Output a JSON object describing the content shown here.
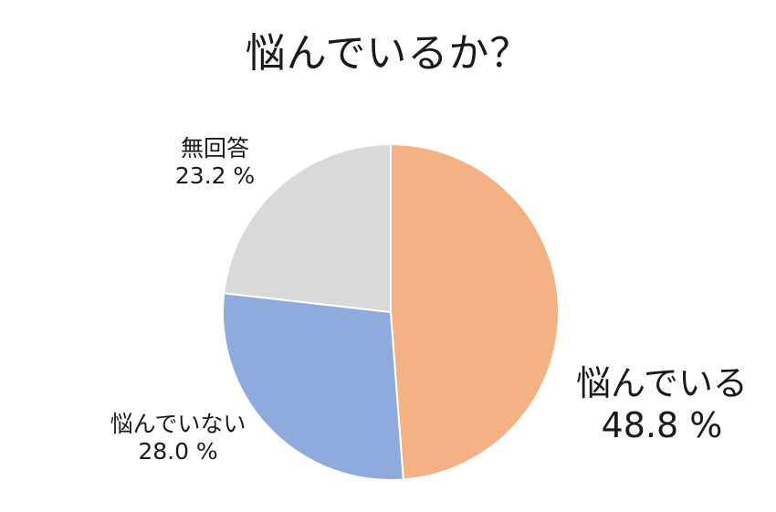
{
  "chart_data": {
    "type": "pie",
    "title": "悩んでいるか？",
    "slices": [
      {
        "label": "悩んでいる",
        "value": 48.8,
        "value_text": "48.8 %",
        "color": "#F4B183"
      },
      {
        "label": "悩んでいない",
        "value": 28.0,
        "value_text": "28.0 %",
        "color": "#8FAADC"
      },
      {
        "label": "無回答",
        "value": 23.2,
        "value_text": "23.2 %",
        "color": "#D9D9D9"
      }
    ],
    "start": "12 o'clock",
    "direction": "clockwise",
    "legend": "none (labels next to slices)"
  }
}
